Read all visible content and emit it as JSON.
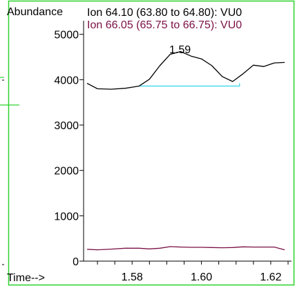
{
  "colors": {
    "frame": "#2ed12e",
    "series1": "#000000",
    "series2": "#7a0f45",
    "baseline": "#3fd7e8",
    "axis": "#000000"
  },
  "header": {
    "ylabel": "Abundance",
    "ion1": "Ion  64.10 (63.80 to 64.80): VU0",
    "ion2": "Ion  66.05 (65.75 to 66.75): VU0",
    "xlabel": "Time-->"
  },
  "peak_label": "1.59",
  "chart_data": {
    "type": "line",
    "xlim": [
      1.566,
      1.626
    ],
    "ylim": [
      0,
      5300
    ],
    "yticks": [
      0,
      1000,
      2000,
      3000,
      4000,
      5000
    ],
    "ytick_labels": [
      "0",
      "1000",
      "2000",
      "3000",
      "4000",
      "5000"
    ],
    "xticks": [
      1.58,
      1.6,
      1.62
    ],
    "xtick_labels": [
      "1.58",
      "1.60",
      "1.62"
    ],
    "series": [
      {
        "name": "Ion  64.10 (63.80 to 64.80): VU0",
        "x": [
          1.567,
          1.57,
          1.574,
          1.578,
          1.582,
          1.585,
          1.588,
          1.591,
          1.594,
          1.597,
          1.6,
          1.603,
          1.606,
          1.609,
          1.612,
          1.615,
          1.618,
          1.621,
          1.624
        ],
        "y": [
          3920,
          3800,
          3790,
          3810,
          3860,
          4010,
          4310,
          4560,
          4620,
          4520,
          4460,
          4310,
          4070,
          3960,
          4130,
          4320,
          4290,
          4370,
          4380
        ]
      },
      {
        "name": "Ion  66.05 (65.75 to 66.75): VU0",
        "x": [
          1.567,
          1.57,
          1.574,
          1.578,
          1.582,
          1.585,
          1.588,
          1.591,
          1.594,
          1.597,
          1.6,
          1.603,
          1.606,
          1.609,
          1.612,
          1.615,
          1.618,
          1.621,
          1.624
        ],
        "y": [
          260,
          250,
          265,
          285,
          285,
          270,
          285,
          320,
          310,
          305,
          305,
          300,
          295,
          300,
          315,
          310,
          310,
          310,
          250
        ]
      }
    ],
    "integration_baseline": {
      "x_start": 1.582,
      "x_end": 1.611,
      "y_start": 3860,
      "y_end": 3860
    },
    "peak": {
      "x": 1.594,
      "y": 4620,
      "label": "1.59"
    },
    "xlabel": "Time-->",
    "ylabel": "Abundance",
    "grid": false
  }
}
